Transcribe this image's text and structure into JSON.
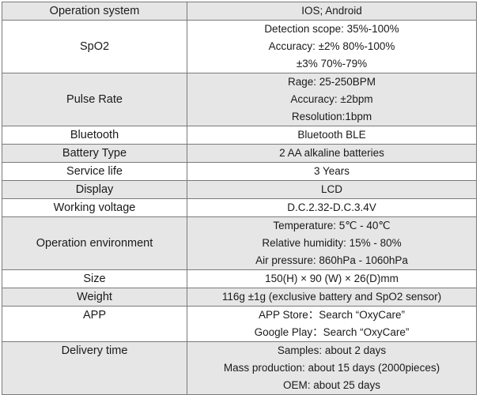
{
  "spec_table": {
    "rows": [
      {
        "label": "Operation system",
        "values": [
          "IOS;  Android"
        ]
      },
      {
        "label": "SpO2",
        "values": [
          "Detection scope: 35%-100%",
          "Accuracy: ±2% 80%-100%",
          "±3% 70%-79%"
        ]
      },
      {
        "label": "Pulse Rate",
        "values": [
          "Rage:  25-250BPM",
          "Accuracy:  ±2bpm",
          "Resolution:1bpm"
        ]
      },
      {
        "label": "Bluetooth",
        "values": [
          "Bluetooth BLE"
        ]
      },
      {
        "label": "Battery Type",
        "values": [
          "2 AA alkaline batteries"
        ]
      },
      {
        "label": "Service life",
        "values": [
          "3 Years"
        ]
      },
      {
        "label": "Display",
        "values": [
          "LCD"
        ]
      },
      {
        "label": "Working voltage",
        "values": [
          "D.C.2.32-D.C.3.4V"
        ]
      },
      {
        "label": "Operation   environment",
        "values": [
          "Temperature: 5℃ - 40℃",
          "Relative humidity: 15% - 80%",
          "Air pressure: 860hPa - 1060hPa"
        ]
      },
      {
        "label": "Size",
        "values": [
          "150(H) × 90 (W) × 26(D)mm"
        ]
      },
      {
        "label": "Weight",
        "values": [
          "116g ±1g (exclusive battery and SpO2 sensor)"
        ]
      },
      {
        "label": "APP",
        "values": [
          "APP Store：Search “OxyCare”",
          "Google Play：Search “OxyCare”"
        ]
      },
      {
        "label": "Delivery time",
        "values": [
          "Samples: about 2 days",
          "Mass production: about 15 days (2000pieces)",
          "OEM: about 25 days"
        ]
      }
    ]
  }
}
